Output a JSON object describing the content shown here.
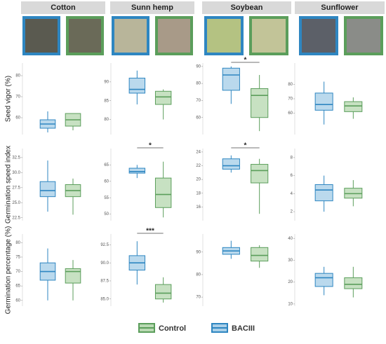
{
  "columns": [
    "Cotton",
    "Sunn hemp",
    "Soybean",
    "Sunflower"
  ],
  "row_labels": [
    "Seed vigor (%)",
    "Germination speed index",
    "Germination percentage (%)"
  ],
  "legend": [
    {
      "name": "Control",
      "color": "#5b9e5b"
    },
    {
      "name": "BACIII",
      "color": "#2e86c1"
    }
  ],
  "chart_data": [
    {
      "type": "box",
      "ylim": [
        52,
        86
      ],
      "yticks": [
        60,
        70,
        80
      ],
      "series": [
        {
          "legend": 1,
          "min": 53,
          "q1": 55,
          "median": 57,
          "q3": 59,
          "max": 63
        },
        {
          "legend": 0,
          "min": 54,
          "q1": 56,
          "median": 59,
          "q3": 62,
          "max": 62
        }
      ]
    },
    {
      "type": "box",
      "ylim": [
        76,
        95
      ],
      "yticks": [
        80,
        85,
        90
      ],
      "series": [
        {
          "legend": 1,
          "min": 84,
          "q1": 87,
          "median": 88,
          "q3": 91,
          "max": 93
        },
        {
          "legend": 0,
          "min": 80,
          "q1": 84,
          "median": 86,
          "q3": 87.5,
          "max": 88
        }
      ]
    },
    {
      "type": "box",
      "ylim": [
        50,
        92
      ],
      "yticks": [
        60,
        70,
        80,
        90
      ],
      "annotation": "*",
      "series": [
        {
          "legend": 1,
          "min": 68,
          "q1": 76,
          "median": 85,
          "q3": 89,
          "max": 90
        },
        {
          "legend": 0,
          "min": 52,
          "q1": 60,
          "median": 73,
          "q3": 77,
          "max": 85
        }
      ]
    },
    {
      "type": "box",
      "ylim": [
        45,
        95
      ],
      "yticks": [
        60,
        70,
        80
      ],
      "series": [
        {
          "legend": 1,
          "min": 52,
          "q1": 62,
          "median": 66,
          "q3": 74,
          "max": 82
        },
        {
          "legend": 0,
          "min": 56,
          "q1": 61,
          "median": 65,
          "q3": 68,
          "max": 71
        }
      ]
    },
    {
      "type": "box",
      "ylim": [
        22,
        34
      ],
      "yticks": [
        22.5,
        {
          "value": 25,
          "label": "25.0"
        },
        27.5,
        {
          "value": 30,
          "label": "30.0"
        },
        32.5
      ],
      "series": [
        {
          "legend": 1,
          "min": 23.5,
          "q1": 26,
          "median": 27,
          "q3": 28.5,
          "max": 32
        },
        {
          "legend": 0,
          "min": 23,
          "q1": 26,
          "median": 27,
          "q3": 28,
          "max": 29
        }
      ]
    },
    {
      "type": "box",
      "ylim": [
        48,
        70
      ],
      "yticks": [
        50,
        55,
        60,
        65
      ],
      "annotation": "*",
      "series": [
        {
          "legend": 1,
          "min": 61,
          "q1": 62.5,
          "median": 63,
          "q3": 64,
          "max": 65
        },
        {
          "legend": 0,
          "min": 49,
          "q1": 52,
          "median": 56,
          "q3": 61,
          "max": 66
        }
      ]
    },
    {
      "type": "box",
      "ylim": [
        14,
        24.5
      ],
      "yticks": [
        16,
        18,
        20,
        22,
        24
      ],
      "annotation": "*",
      "series": [
        {
          "legend": 1,
          "min": 21,
          "q1": 21.5,
          "median": 22,
          "q3": 23,
          "max": 23.5
        },
        {
          "legend": 0,
          "min": 15,
          "q1": 19.5,
          "median": 21.3,
          "q3": 22.2,
          "max": 23
        }
      ]
    },
    {
      "type": "box",
      "ylim": [
        1,
        9
      ],
      "yticks": [
        2,
        4,
        6,
        8
      ],
      "series": [
        {
          "legend": 1,
          "min": 2,
          "q1": 3.2,
          "median": 4.4,
          "q3": 5,
          "max": 6
        },
        {
          "legend": 0,
          "min": 2.6,
          "q1": 3.5,
          "median": 4,
          "q3": 4.6,
          "max": 5.5
        }
      ]
    },
    {
      "type": "box",
      "ylim": [
        58,
        83
      ],
      "yticks": [
        60,
        65,
        70,
        75,
        80
      ],
      "series": [
        {
          "legend": 1,
          "min": 60,
          "q1": 67,
          "median": 70,
          "q3": 73,
          "max": 78
        },
        {
          "legend": 0,
          "min": 60,
          "q1": 66,
          "median": 70,
          "q3": 71,
          "max": 74
        }
      ]
    },
    {
      "type": "box",
      "ylim": [
        84,
        94
      ],
      "yticks": [
        {
          "value": 85,
          "label": "85.0"
        },
        87.5,
        {
          "value": 90,
          "label": "90.0"
        },
        92.5
      ],
      "annotation": "***",
      "series": [
        {
          "legend": 1,
          "min": 87,
          "q1": 89,
          "median": 90,
          "q3": 91,
          "max": 93
        },
        {
          "legend": 0,
          "min": 84.5,
          "q1": 85,
          "median": 85.8,
          "q3": 87,
          "max": 88
        }
      ]
    },
    {
      "type": "box",
      "ylim": [
        66,
        98
      ],
      "yticks": [
        70,
        80,
        90
      ],
      "series": [
        {
          "legend": 1,
          "min": 87,
          "q1": 89,
          "median": 90.5,
          "q3": 92,
          "max": 95
        },
        {
          "legend": 0,
          "min": 83,
          "q1": 86,
          "median": 88.5,
          "q3": 92,
          "max": 93
        }
      ]
    },
    {
      "type": "box",
      "ylim": [
        9,
        42
      ],
      "yticks": [
        10,
        20,
        30,
        40
      ],
      "series": [
        {
          "legend": 1,
          "min": 14,
          "q1": 18,
          "median": 22,
          "q3": 24,
          "max": 27
        },
        {
          "legend": 0,
          "min": 13,
          "q1": 17,
          "median": 19,
          "q3": 22,
          "max": 27
        }
      ]
    }
  ]
}
